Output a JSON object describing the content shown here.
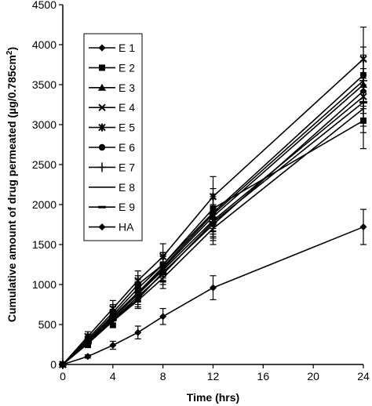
{
  "chart_data": {
    "type": "line",
    "xlabel": "Time (hrs)",
    "ylabel_prefix": "Cumulative amount of drug permeated (µg/0.785cm",
    "ylabel_sup": "2",
    "ylabel_suffix": ")",
    "x_ticks": [
      0,
      4,
      8,
      12,
      16,
      20,
      24
    ],
    "y_ticks": [
      0,
      500,
      1000,
      1500,
      2000,
      2500,
      3000,
      3500,
      4000,
      4500
    ],
    "xlim": [
      0,
      24
    ],
    "ylim": [
      0,
      4500
    ],
    "grid": false,
    "legend_position": "top-left",
    "x": [
      0,
      2,
      4,
      6,
      8,
      12,
      24
    ],
    "series": [
      {
        "name": "E 1",
        "marker": "diamond",
        "values": [
          0,
          280,
          560,
          820,
          1150,
          1750,
          3420
        ],
        "errors": [
          0,
          50,
          90,
          100,
          120,
          200,
          280
        ]
      },
      {
        "name": "E 2",
        "marker": "square",
        "values": [
          0,
          320,
          650,
          1000,
          1250,
          1950,
          3050
        ],
        "errors": [
          0,
          60,
          100,
          110,
          150,
          250,
          350
        ]
      },
      {
        "name": "E 3",
        "marker": "triangle",
        "values": [
          0,
          300,
          600,
          900,
          1200,
          1850,
          3500
        ],
        "errors": [
          0,
          50,
          90,
          110,
          150,
          220,
          300
        ]
      },
      {
        "name": "E 4",
        "marker": "x",
        "values": [
          0,
          280,
          580,
          880,
          1180,
          1800,
          3350
        ],
        "errors": [
          0,
          50,
          90,
          100,
          140,
          200,
          300
        ]
      },
      {
        "name": "E 5",
        "marker": "star",
        "values": [
          0,
          350,
          700,
          1050,
          1350,
          2100,
          3820
        ],
        "errors": [
          0,
          60,
          100,
          120,
          160,
          250,
          400
        ]
      },
      {
        "name": "E 6",
        "marker": "circle",
        "values": [
          0,
          300,
          620,
          950,
          1250,
          1900,
          3620
        ],
        "errors": [
          0,
          50,
          100,
          110,
          150,
          230,
          350
        ]
      },
      {
        "name": "E 7",
        "marker": "plus",
        "values": [
          0,
          290,
          590,
          900,
          1220,
          1880,
          3550
        ],
        "errors": [
          0,
          50,
          90,
          100,
          140,
          220,
          320
        ]
      },
      {
        "name": "E 8",
        "marker": "none",
        "values": [
          0,
          260,
          540,
          800,
          1080,
          1700,
          3200
        ],
        "errors": [
          0,
          50,
          80,
          100,
          130,
          200,
          300
        ]
      },
      {
        "name": "E 9",
        "marker": "dash",
        "values": [
          0,
          270,
          560,
          850,
          1130,
          1780,
          3280
        ],
        "errors": [
          0,
          50,
          80,
          100,
          130,
          200,
          300
        ]
      },
      {
        "name": "HA",
        "marker": "diamond",
        "values": [
          0,
          100,
          240,
          400,
          600,
          960,
          1720
        ],
        "errors": [
          0,
          20,
          50,
          80,
          100,
          150,
          220
        ]
      }
    ]
  }
}
